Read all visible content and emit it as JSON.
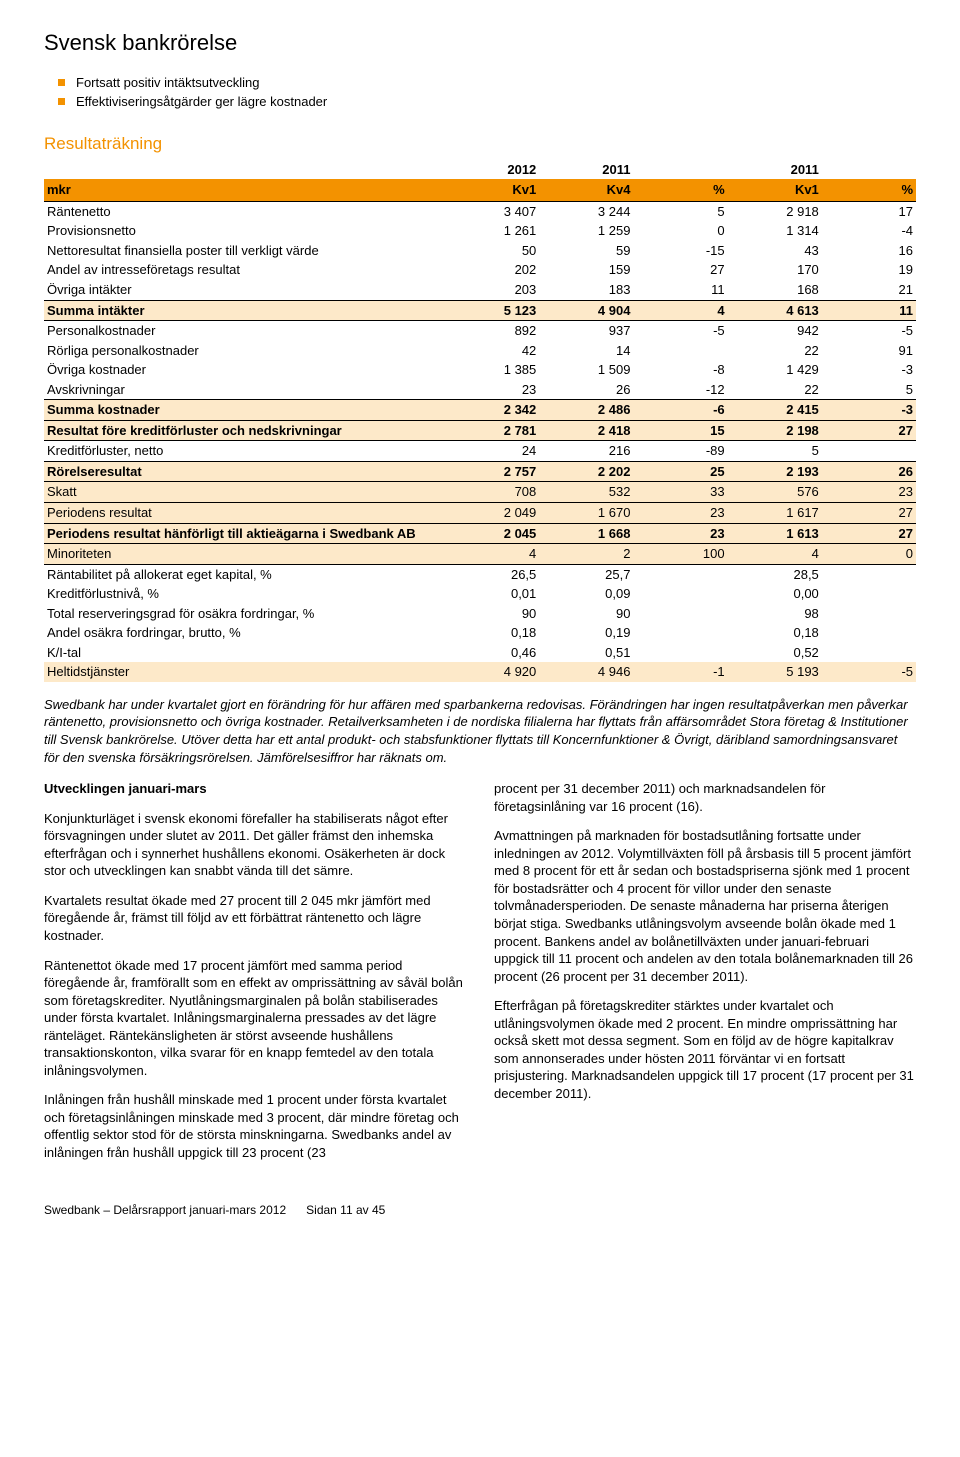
{
  "title": "Svensk bankrörelse",
  "bullets": [
    "Fortsatt positiv intäktsutveckling",
    "Effektiviseringsåtgärder ger lägre kostnader"
  ],
  "section_heading": "Resultaträkning",
  "table": {
    "columns_top": [
      "",
      "2012",
      "2011",
      "",
      "2011",
      ""
    ],
    "columns_bot": [
      "mkr",
      "Kv1",
      "Kv4",
      "%",
      "Kv1",
      "%"
    ],
    "rows": [
      {
        "label": "Räntenetto",
        "v": [
          "3 407",
          "3 244",
          "5",
          "2 918",
          "17"
        ],
        "sep": true
      },
      {
        "label": "Provisionsnetto",
        "v": [
          "1 261",
          "1 259",
          "0",
          "1 314",
          "-4"
        ]
      },
      {
        "label": "Nettoresultat finansiella poster till verkligt värde",
        "v": [
          "50",
          "59",
          "-15",
          "43",
          "16"
        ]
      },
      {
        "label": "Andel av intresseföretags resultat",
        "v": [
          "202",
          "159",
          "27",
          "170",
          "19"
        ]
      },
      {
        "label": "Övriga intäkter",
        "v": [
          "203",
          "183",
          "11",
          "168",
          "21"
        ]
      },
      {
        "label": "Summa intäkter",
        "v": [
          "5 123",
          "4 904",
          "4",
          "4 613",
          "11"
        ],
        "band": true,
        "bold": true,
        "sep": true
      },
      {
        "label": "Personalkostnader",
        "v": [
          "892",
          "937",
          "-5",
          "942",
          "-5"
        ],
        "sep": true
      },
      {
        "label": "Rörliga personalkostnader",
        "v": [
          "42",
          "14",
          "",
          "22",
          "91"
        ]
      },
      {
        "label": "Övriga kostnader",
        "v": [
          "1 385",
          "1 509",
          "-8",
          "1 429",
          "-3"
        ]
      },
      {
        "label": "Avskrivningar",
        "v": [
          "23",
          "26",
          "-12",
          "22",
          "5"
        ]
      },
      {
        "label": "Summa kostnader",
        "v": [
          "2 342",
          "2 486",
          "-6",
          "2 415",
          "-3"
        ],
        "band": true,
        "bold": true,
        "sep": true
      },
      {
        "label": "Resultat före kreditförluster och nedskrivningar",
        "v": [
          "2 781",
          "2 418",
          "15",
          "2 198",
          "27"
        ],
        "band": true,
        "bold": true,
        "sep": true
      },
      {
        "label": "Kreditförluster, netto",
        "v": [
          "24",
          "216",
          "-89",
          "5",
          ""
        ],
        "sep": true,
        "ul": true
      },
      {
        "label": "Rörelseresultat",
        "v": [
          "2 757",
          "2 202",
          "25",
          "2 193",
          "26"
        ],
        "band": true,
        "bold": true,
        "sep": true
      },
      {
        "label": "Skatt",
        "v": [
          "708",
          "532",
          "33",
          "576",
          "23"
        ],
        "band": true,
        "sep": true
      },
      {
        "label": "Periodens resultat",
        "v": [
          "2 049",
          "1 670",
          "23",
          "1 617",
          "27"
        ],
        "band": true,
        "sep": true
      },
      {
        "label": "Periodens resultat hänförligt till aktieägarna i Swedbank AB",
        "v": [
          "2 045",
          "1 668",
          "23",
          "1 613",
          "27"
        ],
        "band": true,
        "bold": true,
        "sep": true,
        "wrap": true
      },
      {
        "label": "Minoriteten",
        "v": [
          "4",
          "2",
          "100",
          "4",
          "0"
        ],
        "band": true,
        "sep": true
      },
      {
        "label": "Räntabilitet på allokerat eget kapital, %",
        "v": [
          "26,5",
          "25,7",
          "",
          "28,5",
          ""
        ],
        "sep": true
      },
      {
        "label": "Kreditförlustnivå, %",
        "v": [
          "0,01",
          "0,09",
          "",
          "0,00",
          ""
        ]
      },
      {
        "label": "Total reserveringsgrad för osäkra fordringar, %",
        "v": [
          "90",
          "90",
          "",
          "98",
          ""
        ]
      },
      {
        "label": "Andel osäkra fordringar, brutto, %",
        "v": [
          "0,18",
          "0,19",
          "",
          "0,18",
          ""
        ]
      },
      {
        "label": "K/I-tal",
        "v": [
          "0,46",
          "0,51",
          "",
          "0,52",
          ""
        ]
      },
      {
        "label": "Heltidstjänster",
        "v": [
          "4 920",
          "4 946",
          "-1",
          "5 193",
          "-5"
        ],
        "band": true
      }
    ]
  },
  "explain": "Swedbank har under kvartalet gjort en förändring för hur affären med sparbankerna redovisas. Förändringen har ingen resultatpåverkan men påverkar räntenetto, provisionsnetto och övriga kostnader. Retailverksamheten i de nordiska filialerna har flyttats från affärsområdet Stora företag & Institutioner till Svensk bankrörelse. Utöver detta har ett antal produkt- och stabsfunktioner flyttats till Koncernfunktioner & Övrigt, däribland samordningsansvaret för den svenska försäkringsrörelsen. Jämförelsesiffror har räknats om.",
  "left_col": {
    "subhead": "Utvecklingen januari-mars",
    "paras": [
      "Konjunkturläget i svensk ekonomi förefaller ha stabiliserats något efter försvagningen under slutet av 2011. Det gäller främst den inhemska efterfrågan och i synnerhet hushållens ekonomi. Osäkerheten är dock stor och utvecklingen kan snabbt vända till det sämre.",
      "Kvartalets resultat ökade med 27 procent till 2 045 mkr jämfört med föregående år, främst till följd av ett förbättrat räntenetto och lägre kostnader.",
      "Räntenettot ökade med 17 procent jämfört med samma period föregående år, framförallt som en effekt av omprissättning av såväl bolån som företagskrediter. Nyutlåningsmarginalen på bolån stabiliserades under första kvartalet. Inlåningsmarginalerna pressades av det lägre ränteläget. Räntekänsligheten är störst avseende hushållens transaktionskonton, vilka svarar för en knapp femtedel av den totala inlåningsvolymen.",
      "Inlåningen från hushåll minskade med 1 procent under första kvartalet och företagsinlåningen minskade med 3 procent, där mindre företag och offentlig sektor stod för de största minskningarna. Swedbanks andel av inlåningen från hushåll uppgick till 23 procent (23"
    ]
  },
  "right_col": {
    "paras": [
      "procent per 31 december 2011) och marknadsandelen för företagsinlåning var 16 procent (16).",
      "Avmattningen på marknaden för bostadsutlåning fortsatte under inledningen av 2012. Volymtillväxten föll på årsbasis till 5 procent jämfört med 8 procent för ett år sedan och bostadspriserna sjönk med 1 procent för bostadsrätter och 4 procent för villor under den senaste tolvmånadersperioden. De senaste månaderna har priserna återigen börjat stiga. Swedbanks utlåningsvolym avseende bolån ökade med 1 procent. Bankens andel av bolånetillväxten under januari-februari uppgick till 11 procent och andelen av den totala bolånemarknaden till 26 procent (26 procent per 31 december 2011).",
      "Efterfrågan på företagskrediter stärktes under kvartalet och utlåningsvolymen ökade med 2 procent. En mindre omprissättning har också skett mot dessa segment. Som en följd av de högre kapitalkrav som annonserades under hösten 2011 förväntar vi en fortsatt prisjustering. Marknadsandelen uppgick till 17 procent (17 procent per 31 december 2011)."
    ]
  },
  "footer_left": "Swedbank – Delårsrapport januari-mars 2012",
  "footer_right": "Sidan 11 av 45"
}
